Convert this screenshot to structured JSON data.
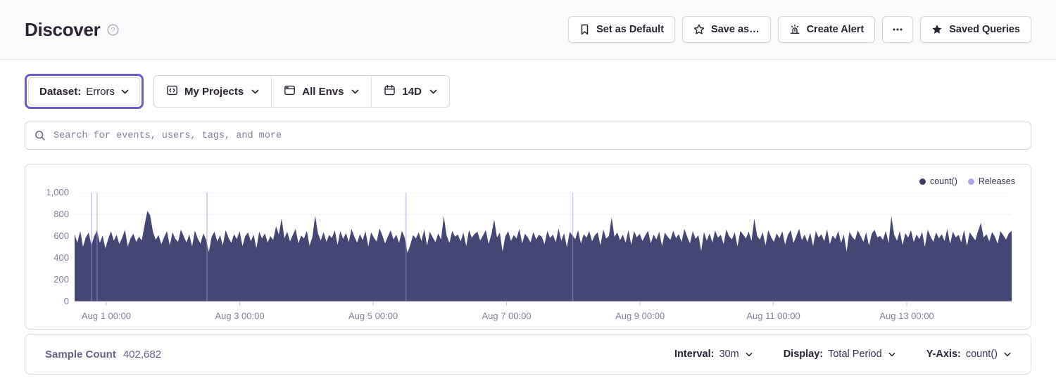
{
  "header": {
    "title": "Discover",
    "buttons": {
      "set_default": "Set as Default",
      "save_as": "Save as…",
      "create_alert": "Create Alert",
      "saved_queries": "Saved Queries"
    }
  },
  "filters": {
    "dataset": {
      "label": "Dataset:",
      "value": "Errors"
    },
    "projects": {
      "label": "My Projects"
    },
    "environments": {
      "label": "All Envs"
    },
    "date_range": {
      "label": "14D"
    }
  },
  "search": {
    "placeholder": "Search for events, users, tags, and more"
  },
  "chart_data": {
    "type": "area",
    "title": "",
    "xlabel": "",
    "ylabel": "count()",
    "ylim": [
      0,
      1000
    ],
    "grid": "horizontal",
    "legend": [
      {
        "label": "count()",
        "color": "#3E3A66"
      },
      {
        "label": "Releases",
        "color": "#B1A4E9"
      }
    ],
    "colors": {
      "fill": "#444674",
      "grid": "#F0EDF4",
      "axis": "#CBBFD6",
      "release": "#9E93E2"
    },
    "y_ticks": [
      "0",
      "200",
      "400",
      "600",
      "800",
      "1,000"
    ],
    "x_ticks": [
      {
        "label": "Aug 1 00:00",
        "pos": 0.0338
      },
      {
        "label": "Aug 3 00:00",
        "pos": 0.1762
      },
      {
        "label": "Aug 5 00:00",
        "pos": 0.3186
      },
      {
        "label": "Aug 7 00:00",
        "pos": 0.461
      },
      {
        "label": "Aug 9 00:00",
        "pos": 0.6034
      },
      {
        "label": "Aug 11 00:00",
        "pos": 0.7457
      },
      {
        "label": "Aug 13 00:00",
        "pos": 0.8881
      }
    ],
    "releases": {
      "name": "Releases",
      "positions": [
        0.018,
        0.024,
        0.1412,
        0.3536,
        0.5315
      ]
    },
    "series": [
      {
        "name": "count()",
        "values": [
          615,
          540,
          648,
          502,
          588,
          632,
          518,
          598,
          652,
          538,
          605,
          488,
          572,
          645,
          558,
          612,
          528,
          585,
          658,
          506,
          578,
          622,
          548,
          595,
          560,
          700,
          832,
          790,
          640,
          565,
          610,
          525,
          590,
          645,
          515,
          635,
          575,
          548,
          660,
          598,
          542,
          615,
          505,
          650,
          580,
          530,
          625,
          568,
          455,
          595,
          640,
          550,
          608,
          515,
          655,
          585,
          538,
          618,
          572,
          645,
          508,
          598,
          635,
          552,
          612,
          489,
          640,
          578,
          625,
          542,
          600,
          565,
          690,
          615,
          762,
          580,
          640,
          552,
          610,
          665,
          535,
          605,
          578,
          648,
          512,
          592,
          788,
          625,
          560,
          636,
          548,
          610,
          582,
          655,
          518,
          645,
          575,
          628,
          545,
          665,
          595,
          540,
          618,
          562,
          645,
          505,
          635,
          585,
          550,
          670,
          608,
          532,
          596,
          652,
          570,
          612,
          538,
          648,
          588,
          445,
          520,
          610,
          578,
          635,
          555,
          662,
          512,
          640,
          590,
          545,
          625,
          568,
          782,
          605,
          538,
          648,
          595,
          615,
          552,
          632,
          508,
          655,
          585,
          620,
          640,
          560,
          605,
          655,
          528,
          615,
          752,
          585,
          632,
          458,
          598,
          645,
          555,
          610,
          578,
          665,
          535,
          622,
          590,
          542,
          638,
          570,
          612,
          595,
          525,
          648,
          582,
          615,
          545,
          670,
          558,
          628,
          498,
          640,
          605,
          572,
          655,
          530,
          618,
          585,
          645,
          552,
          608,
          635,
          515,
          662,
          578,
          600,
          772,
          592,
          635,
          562,
          612,
          540,
          658,
          518,
          645,
          588,
          622,
          555,
          605,
          648,
          535,
          615,
          570,
          640,
          508,
          632,
          595,
          565,
          650,
          582,
          618,
          548,
          665,
          595,
          532,
          645,
          575,
          608,
          462,
          638,
          558,
          625,
          542,
          652,
          585,
          612,
          528,
          660,
          598,
          570,
          635,
          505,
          648,
          615,
          578,
          642,
          555,
          762,
          602,
          568,
          635,
          515,
          655,
          590,
          548,
          625,
          580,
          645,
          522,
          610,
          655,
          538,
          598,
          668,
          562,
          615,
          545,
          630,
          508,
          645,
          585,
          618,
          552,
          662,
          528,
          605,
          575,
          648,
          538,
          615,
          458,
          640,
          592,
          565,
          652,
          602,
          548,
          635,
          512,
          622,
          658,
          588,
          602,
          565,
          648,
          535,
          782,
          612,
          558,
          645,
          518,
          628,
          585,
          655,
          545,
          615,
          572,
          638,
          502,
          660,
          595,
          548,
          632,
          578,
          618,
          555,
          665,
          528,
          642,
          588,
          612,
          545,
          655,
          508,
          635,
          598,
          562,
          648,
          722,
          585,
          618,
          552,
          638,
          595,
          530,
          645,
          608,
          568,
          625,
          648
        ]
      }
    ]
  },
  "footer": {
    "sample_count_label": "Sample Count",
    "sample_count_value": "402,682",
    "controls": [
      {
        "label": "Interval:",
        "value": "30m"
      },
      {
        "label": "Display:",
        "value": "Total Period"
      },
      {
        "label": "Y-Axis:",
        "value": "count()"
      }
    ]
  }
}
